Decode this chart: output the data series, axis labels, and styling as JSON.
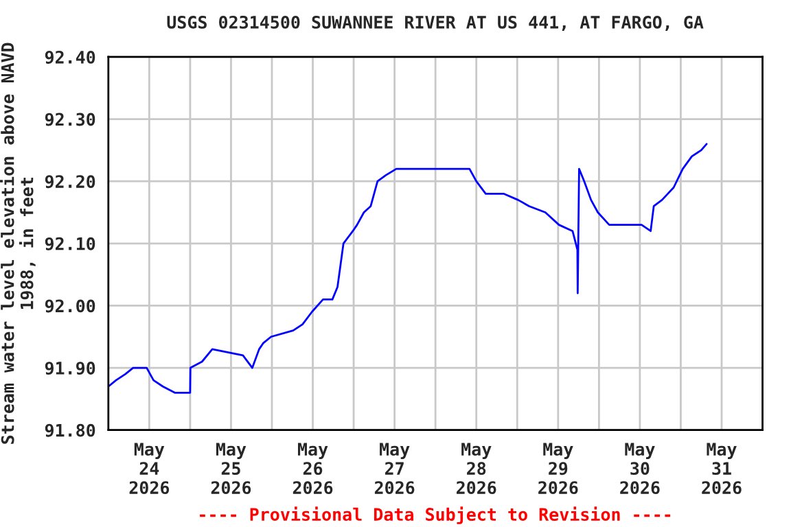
{
  "chart_data": {
    "type": "line",
    "title": "USGS 02314500 SUWANNEE RIVER AT US 441, AT FARGO, GA",
    "ylabel": "Stream water level elevation above NAVD\n1988, in feet",
    "annotations": [
      "---- Provisional Data Subject to Revision ----"
    ],
    "x": [
      "2026-05-24T00:00",
      "2026-05-24T02:15",
      "2026-05-24T05:00",
      "2026-05-24T07:15",
      "2026-05-24T11:15",
      "2026-05-24T13:15",
      "2026-05-24T16:00",
      "2026-05-24T19:30",
      "2026-05-25T00:00",
      "2026-05-25T00:05",
      "2026-05-25T03:30",
      "2026-05-25T06:30",
      "2026-05-25T15:30",
      "2026-05-25T18:15",
      "2026-05-25T20:15",
      "2026-05-25T21:30",
      "2026-05-25T23:45",
      "2026-05-26T06:15",
      "2026-05-26T09:00",
      "2026-05-26T11:45",
      "2026-05-26T15:00",
      "2026-05-26T17:45",
      "2026-05-26T19:15",
      "2026-05-26T20:30",
      "2026-05-26T21:00",
      "2026-05-26T23:45",
      "2026-05-27T01:00",
      "2026-05-27T03:00",
      "2026-05-27T05:00",
      "2026-05-27T07:00",
      "2026-05-27T09:30",
      "2026-05-27T12:30",
      "2026-05-27T19:15",
      "2026-05-27T22:30",
      "2026-05-28T07:30",
      "2026-05-28T10:00",
      "2026-05-28T12:00",
      "2026-05-28T14:45",
      "2026-05-28T20:00",
      "2026-05-29T00:15",
      "2026-05-29T03:30",
      "2026-05-29T08:15",
      "2026-05-29T12:15",
      "2026-05-29T16:15",
      "2026-05-29T17:40",
      "2026-05-29T17:45",
      "2026-05-29T18:10",
      "2026-05-29T19:40",
      "2026-05-29T21:40",
      "2026-05-29T23:40",
      "2026-05-30T03:00",
      "2026-05-30T12:30",
      "2026-05-30T15:10",
      "2026-05-30T16:05",
      "2026-05-30T18:30",
      "2026-05-30T21:55",
      "2026-05-31T00:35",
      "2026-05-31T03:15",
      "2026-05-31T06:00",
      "2026-05-31T07:35"
    ],
    "series": [
      {
        "color": "#0000ff",
        "values": [
          91.87,
          91.88,
          91.89,
          91.9,
          91.9,
          91.88,
          91.87,
          91.86,
          91.86,
          91.9,
          91.91,
          91.93,
          91.92,
          91.9,
          91.93,
          91.94,
          91.95,
          91.96,
          91.97,
          91.99,
          92.01,
          92.01,
          92.03,
          92.08,
          92.1,
          92.12,
          92.13,
          92.15,
          92.16,
          92.2,
          92.21,
          92.22,
          92.22,
          92.22,
          92.22,
          92.22,
          92.2,
          92.18,
          92.18,
          92.17,
          92.16,
          92.15,
          92.13,
          92.12,
          92.09,
          92.02,
          92.22,
          92.2,
          92.17,
          92.15,
          92.13,
          92.13,
          92.12,
          92.16,
          92.17,
          92.19,
          92.22,
          92.24,
          92.25,
          92.26
        ]
      }
    ],
    "xlim": [
      "2026-05-24T00:00",
      "2026-06-01T00:00"
    ],
    "xticks": [
      {
        "value": "2026-05-24T12:00",
        "label": "May\n24\n2026"
      },
      {
        "value": "2026-05-25T00:00",
        "label": null
      },
      {
        "value": "2026-05-25T12:00",
        "label": "May\n25\n2026"
      },
      {
        "value": "2026-05-26T00:00",
        "label": null
      },
      {
        "value": "2026-05-26T12:00",
        "label": "May\n26\n2026"
      },
      {
        "value": "2026-05-27T00:00",
        "label": null
      },
      {
        "value": "2026-05-27T12:00",
        "label": "May\n27\n2026"
      },
      {
        "value": "2026-05-28T00:00",
        "label": null
      },
      {
        "value": "2026-05-28T12:00",
        "label": "May\n28\n2026"
      },
      {
        "value": "2026-05-29T00:00",
        "label": null
      },
      {
        "value": "2026-05-29T12:00",
        "label": "May\n29\n2026"
      },
      {
        "value": "2026-05-30T00:00",
        "label": null
      },
      {
        "value": "2026-05-30T12:00",
        "label": "May\n30\n2026"
      },
      {
        "value": "2026-05-31T00:00",
        "label": null
      },
      {
        "value": "2026-05-31T12:00",
        "label": "May\n31\n2026"
      }
    ],
    "ylim": [
      91.8,
      92.4
    ],
    "yticks": [
      {
        "value": 91.8,
        "label": "91.80"
      },
      {
        "value": 91.9,
        "label": "91.90"
      },
      {
        "value": 92.0,
        "label": "92.00"
      },
      {
        "value": 92.1,
        "label": "92.10"
      },
      {
        "value": 92.2,
        "label": "92.20"
      },
      {
        "value": 92.3,
        "label": "92.30"
      },
      {
        "value": 92.4,
        "label": "92.40"
      }
    ],
    "grid": true
  }
}
